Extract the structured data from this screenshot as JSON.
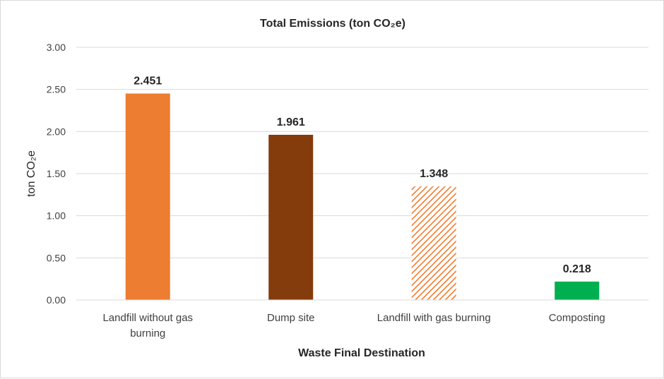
{
  "chart_data": {
    "type": "bar",
    "title": "Total Emissions (ton CO₂e)",
    "xlabel": "Waste Final Destination",
    "ylabel": "ton CO₂e",
    "categories": [
      [
        "Landfill without gas",
        "burning"
      ],
      [
        "Dump site"
      ],
      [
        "Landfill with gas burning"
      ],
      [
        "Composting"
      ]
    ],
    "values": [
      2.451,
      1.961,
      1.348,
      0.218
    ],
    "value_labels": [
      "2.451",
      "1.961",
      "1.348",
      "0.218"
    ],
    "colors": [
      "#ED7D31",
      "#843C0C",
      "#ED7D31",
      "#00B050"
    ],
    "patterns": [
      "solid",
      "solid",
      "diagonal-hatch",
      "solid"
    ],
    "ylim": [
      0,
      3
    ],
    "yticks": [
      0,
      0.5,
      1,
      1.5,
      2,
      2.5,
      3
    ],
    "ytick_labels": [
      "0.00",
      "0.50",
      "1.00",
      "1.50",
      "2.00",
      "2.50",
      "3.00"
    ],
    "grid": true,
    "legend": "none"
  }
}
